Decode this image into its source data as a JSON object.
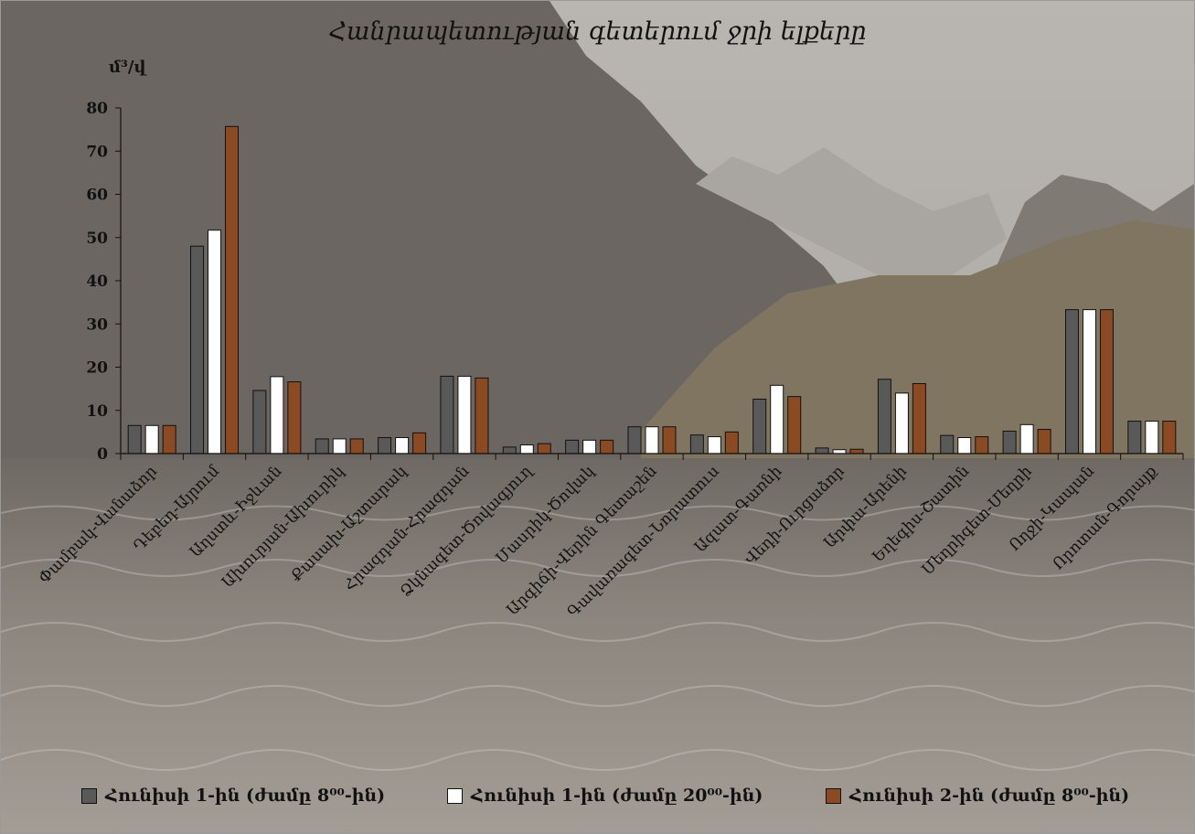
{
  "chart_data": {
    "type": "bar",
    "title": "Հանրապետության գետերում ջրի ելքերը",
    "ylabel": "մ³/վ",
    "ylim": [
      0,
      80
    ],
    "yticks": [
      0,
      10,
      20,
      30,
      40,
      50,
      60,
      70,
      80
    ],
    "grid": false,
    "legend_position": "bottom",
    "categories": [
      "Փամբակ-Վանաձոր",
      "Դեբեդ-Այրում",
      "Աղստև-Իջևան",
      "Ախուրյան-Ախուրիկ",
      "Քասախ-Աշտարակ",
      "Հրազդան-Հրազդան",
      "Ձկնագետ-Ծովագյուղ",
      "Մասրիկ-Ծովակ",
      "Արգիճի-Վերին Գետաշեն",
      "Գավառագետ-Նորատուս",
      "Ազատ-Գառնի",
      "Վեդի-Ուրցաձոր",
      "Արփա-Արենի",
      "Եղեգիս-Շատին",
      "Մեղրիգետ-Մեղրի",
      "Ողջի-Կապան",
      "Որոտան-Գորայք"
    ],
    "series": [
      {
        "name": "Հունիսի 1-ին (ժամը 8⁰⁰-ին)",
        "color": "#595959",
        "values": [
          6.5,
          48,
          14.6,
          3.4,
          3.7,
          17.9,
          1.5,
          3.1,
          6.2,
          4.3,
          12.6,
          1.3,
          17.2,
          4.2,
          5.2,
          33.3,
          7.5
        ]
      },
      {
        "name": "Հունիսի 1-ին (ժամը 20⁰⁰-ին)",
        "color": "#ffffff",
        "values": [
          6.5,
          51.7,
          17.8,
          3.4,
          3.7,
          17.9,
          2.0,
          3.1,
          6.2,
          3.9,
          15.8,
          0.9,
          14.0,
          3.7,
          6.7,
          33.3,
          7.5
        ]
      },
      {
        "name": "Հունիսի 2-ին (ժամը 8⁰⁰-ին)",
        "color": "#8b4a22",
        "values": [
          6.5,
          75.7,
          16.6,
          3.4,
          4.8,
          17.5,
          2.3,
          3.1,
          6.2,
          5.0,
          13.2,
          1.0,
          16.2,
          3.9,
          5.6,
          33.3,
          7.5
        ]
      }
    ]
  }
}
